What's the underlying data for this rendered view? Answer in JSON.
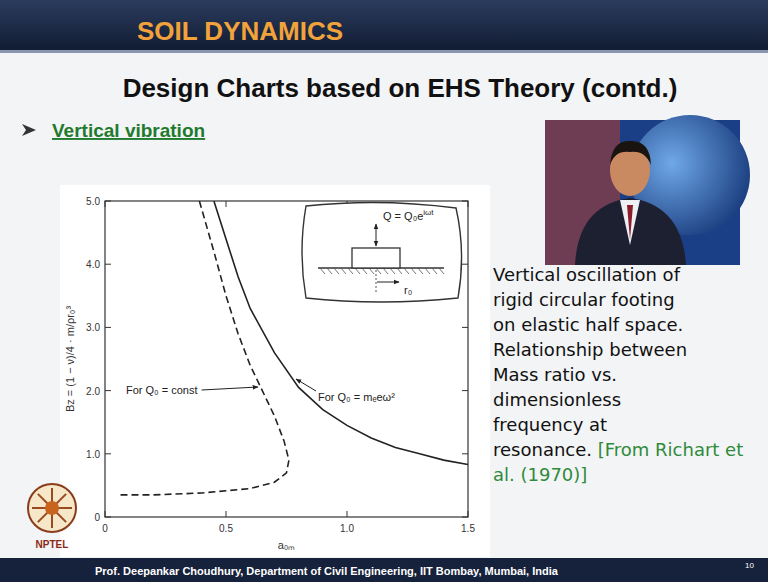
{
  "slide": {
    "header": "SOIL DYNAMICS",
    "title": "Design Charts based on EHS Theory (contd.)",
    "bullet": "Vertical vibration",
    "description_lines": [
      "Vertical oscillation of",
      "rigid circular footing",
      "on elastic half space.",
      "Relationship between",
      "Mass ratio vs.",
      "dimensionless",
      "frequency at",
      "resonance."
    ],
    "citation": "[From Richart et al. (1970)]",
    "logo": "NPTEL",
    "footer": "Prof. Deepankar Choudhury, Department of Civil Engineering, IIT Bombay, Mumbai, India",
    "page_number": 10
  },
  "chart_data": {
    "type": "line",
    "x_label": "a₀ₘ",
    "y_label": "Bz = (1 − ν)/4 · m/ρr₀³",
    "xlim": [
      0,
      1.5
    ],
    "ylim": [
      0,
      5
    ],
    "xticks": [
      0,
      {
        "value": 0.5,
        "label": "0.5"
      },
      {
        "value": 1,
        "label": "1.0"
      },
      {
        "value": 1.5,
        "label": "1.5"
      }
    ],
    "yticks": [
      0,
      {
        "value": 1,
        "label": "1.0"
      },
      {
        "value": 2,
        "label": "2.0"
      },
      {
        "value": 3,
        "label": "3.0"
      },
      {
        "value": 4,
        "label": "4.0"
      },
      {
        "value": 5,
        "label": "5.0"
      }
    ],
    "grid": false,
    "series": [
      {
        "name": "For Q₀ = const",
        "color": "#222222",
        "line_style": "dashed",
        "x": [
          0.39,
          0.45,
          0.5,
          0.55,
          0.6,
          0.65,
          0.7,
          0.74,
          0.76,
          0.75,
          0.7,
          0.6,
          0.4,
          0.2,
          0.05
        ],
        "values": [
          5.0,
          4.2,
          3.5,
          2.9,
          2.4,
          2.0,
          1.6,
          1.2,
          0.9,
          0.7,
          0.55,
          0.45,
          0.38,
          0.35,
          0.35
        ]
      },
      {
        "name": "For Q₀ = mₑeω²",
        "color": "#222222",
        "line_style": "solid",
        "x": [
          0.45,
          0.5,
          0.55,
          0.6,
          0.7,
          0.8,
          0.9,
          1.0,
          1.1,
          1.2,
          1.3,
          1.4,
          1.5
        ],
        "values": [
          5.0,
          4.4,
          3.8,
          3.3,
          2.6,
          2.05,
          1.7,
          1.45,
          1.25,
          1.1,
          1.0,
          0.9,
          0.83
        ]
      }
    ],
    "annotations": [
      {
        "text": "Q = Q₀e",
        "superscript": "iωt"
      },
      {
        "text": "r₀"
      }
    ]
  }
}
